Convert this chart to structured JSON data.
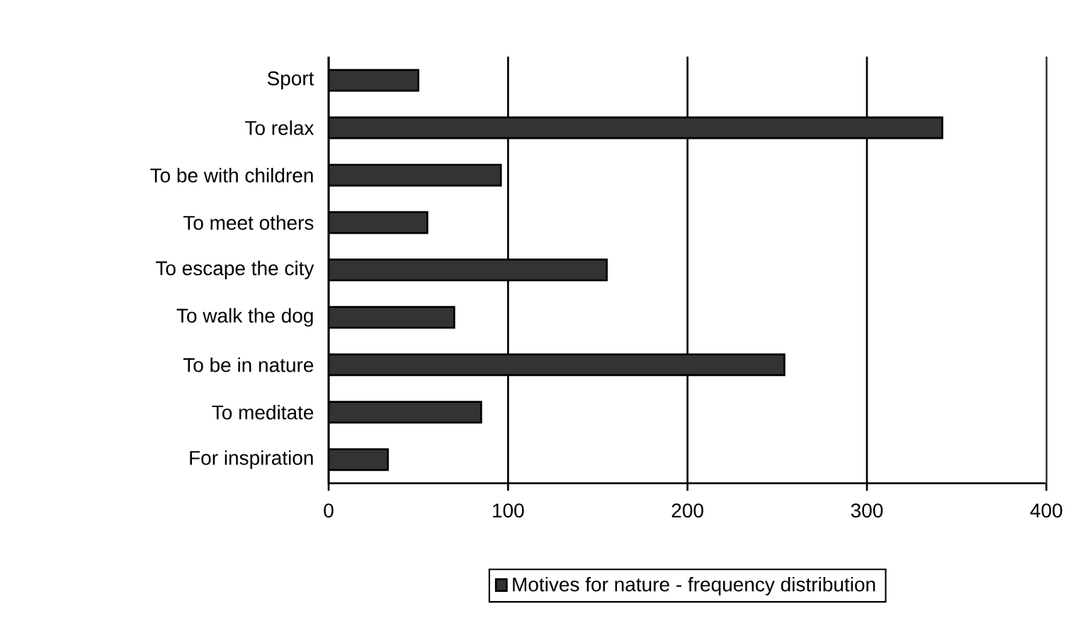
{
  "chart_data": {
    "type": "bar",
    "orientation": "horizontal",
    "categories": [
      "Sport",
      "To relax",
      "To be with children",
      "To meet others",
      "To escape the city",
      "To walk the dog",
      "To be in nature",
      "To meditate",
      "For inspiration"
    ],
    "series": [
      {
        "name": "Motives for nature - frequency distribution",
        "color": "#333333",
        "values": [
          50,
          342,
          96,
          55,
          155,
          70,
          254,
          85,
          33
        ]
      }
    ],
    "xlim": [
      0,
      400
    ],
    "xticks": [
      0,
      100,
      200,
      300,
      400
    ],
    "grid": "x",
    "legend": "bottom"
  }
}
